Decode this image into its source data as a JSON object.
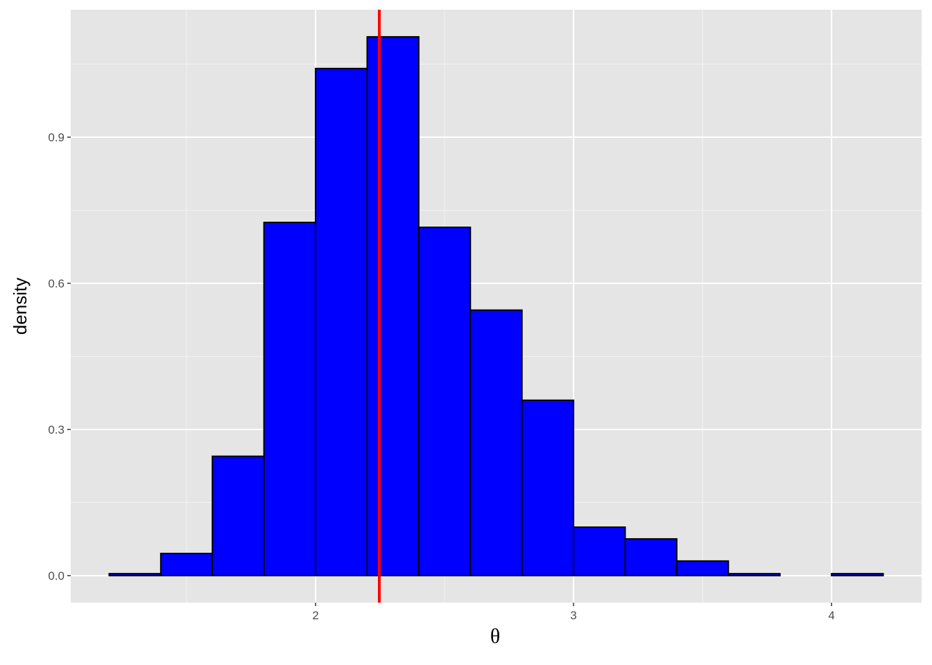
{
  "chart_data": {
    "type": "histogram",
    "x_label": "θ",
    "y_label": "density",
    "bins": [
      1.2,
      1.4,
      1.6,
      1.8,
      2.0,
      2.2,
      2.4,
      2.6,
      2.8,
      3.0,
      3.2,
      3.4,
      3.6,
      3.8,
      4.0,
      4.2
    ],
    "values": [
      0.004,
      0.0455,
      0.245,
      0.725,
      1.041,
      1.106,
      0.715,
      0.545,
      0.36,
      0.0995,
      0.0754,
      0.03,
      0.004,
      0,
      0.004
    ],
    "color": "#0000ff",
    "edge_color": "#000000",
    "xlim": [
      1.051,
      4.349
    ],
    "ylim": [
      -0.0555,
      1.1617
    ],
    "xticks": [
      2,
      3,
      4
    ],
    "yticks": [
      {
        "value": 0,
        "label": "0.0"
      },
      0.3,
      0.6,
      0.9
    ],
    "xminor": [
      1.5,
      2.5,
      3.5
    ],
    "yminor": [
      0.15,
      0.45,
      0.75,
      1.05
    ],
    "grid": true,
    "vline": {
      "x": 2.247,
      "color": "#ff0000"
    }
  }
}
